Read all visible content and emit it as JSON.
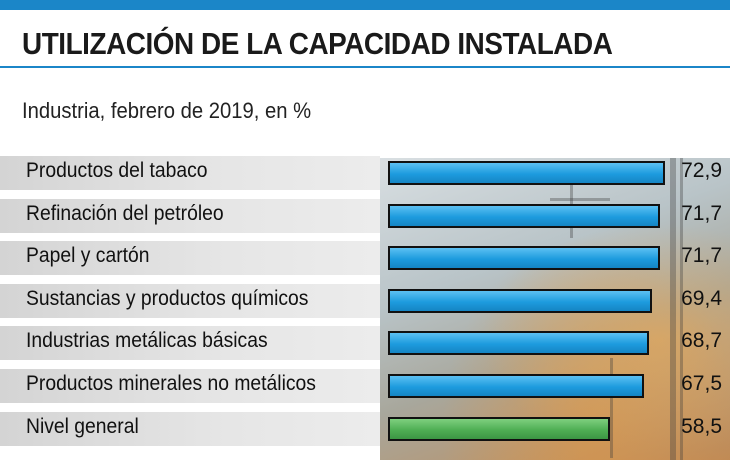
{
  "title": "UTILIZACIÓN DE LA CAPACIDAD INSTALADA",
  "subtitle": "Industria, febrero de 2019, en %",
  "colors": {
    "accent": "#1b86c8",
    "bar": "#1d9bde",
    "highlight_bar": "#4fae54"
  },
  "chart_data": {
    "type": "bar",
    "orientation": "horizontal",
    "title": "UTILIZACIÓN DE LA CAPACIDAD INSTALADA",
    "subtitle": "Industria, febrero de 2019, en %",
    "categories": [
      "Productos del tabaco",
      "Refinación del petróleo",
      "Papel y cartón",
      "Sustancias y productos químicos",
      "Industrias metálicas básicas",
      "Productos minerales no metálicos",
      "Nivel general"
    ],
    "values": [
      72.9,
      71.7,
      71.7,
      69.4,
      68.7,
      67.5,
      58.5
    ],
    "value_labels": [
      "72,9",
      "71,7",
      "71,7",
      "69,4",
      "68,7",
      "67,5",
      "58,5"
    ],
    "highlight_category": "Nivel general",
    "xlim": [
      0,
      72.9
    ],
    "grid": false
  }
}
